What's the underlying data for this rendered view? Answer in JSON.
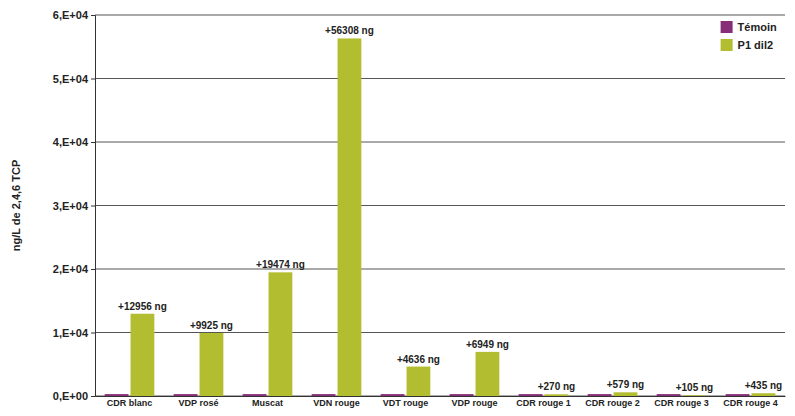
{
  "chart_data": {
    "type": "bar",
    "y_label": "ng/L de 2,4,6 TCP",
    "categories": [
      "CDR blanc",
      "VDP rosé",
      "Muscat",
      "VDN rouge",
      "VDT rouge",
      "VDP rouge",
      "CDR rouge 1",
      "CDR rouge 2",
      "CDR rouge 3",
      "CDR rouge 4"
    ],
    "series": [
      {
        "name": "Témoin",
        "color": "#862f78",
        "values": [
          300,
          300,
          300,
          300,
          300,
          300,
          300,
          300,
          300,
          300
        ]
      },
      {
        "name": "P1 dil2",
        "color": "#b3bd30",
        "values": [
          12956,
          9925,
          19474,
          56308,
          4636,
          6949,
          270,
          579,
          105,
          435
        ],
        "value_labels": [
          "+12956 ng",
          "+9925 ng",
          "+19474 ng",
          "+56308 ng",
          "+4636 ng",
          "+6949 ng",
          "+270 ng",
          "+579 ng",
          "+105 ng",
          "+435 ng"
        ]
      }
    ],
    "ylim": [
      0,
      60000
    ],
    "yticks": [
      {
        "value": 0,
        "label": "0,E+00"
      },
      {
        "value": 10000,
        "label": "1,E+04"
      },
      {
        "value": 20000,
        "label": "2,E+04"
      },
      {
        "value": 30000,
        "label": "3,E+04"
      },
      {
        "value": 40000,
        "label": "4,E+04"
      },
      {
        "value": 50000,
        "label": "5,E+04"
      },
      {
        "value": 60000,
        "label": "6,E+04"
      }
    ],
    "grid": true,
    "legend": "top-right"
  }
}
